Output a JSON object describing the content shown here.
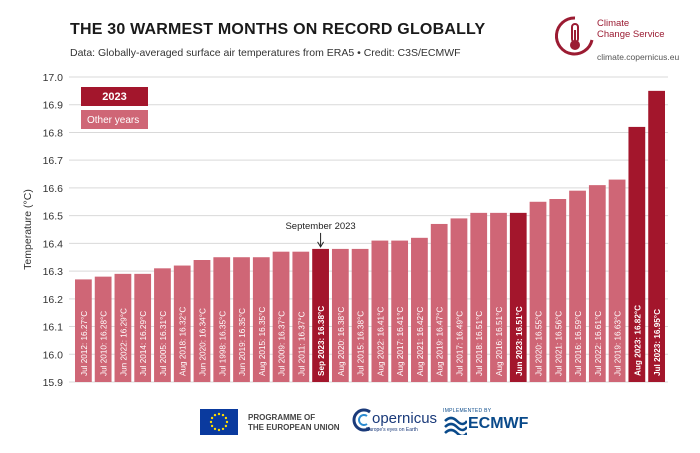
{
  "header": {
    "title": "THE 30 WARMEST MONTHS ON RECORD GLOBALLY",
    "subtitle": "Data: Globally-averaged surface air temperatures from ERA5 • Credit: C3S/ECMWF"
  },
  "brand": {
    "name_line1": "Climate",
    "name_line2": "Change Service",
    "url": "climate.copernicus.eu",
    "color": "#9b1b32"
  },
  "footer": {
    "eu_line1": "PROGRAMME OF",
    "eu_line2": "THE EUROPEAN UNION",
    "copernicus": "opernicus",
    "copernicus_tag": "Europe's eyes on Earth",
    "ecmwf_small": "IMPLEMENTED BY",
    "ecmwf": "ECMWF"
  },
  "colors": {
    "highlight": "#a3162c",
    "other": "#cf6676",
    "grid": "#d9d9d9"
  },
  "chart_data": {
    "type": "bar",
    "title": "THE 30 WARMEST MONTHS ON RECORD GLOBALLY",
    "ylabel": "Temperature (°C)",
    "ylim": [
      15.9,
      17.0
    ],
    "yticks": [
      "15.9",
      "16.0",
      "16.1",
      "16.2",
      "16.3",
      "16.4",
      "16.5",
      "16.6",
      "16.7",
      "16.8",
      "16.9",
      "17.0"
    ],
    "grid": true,
    "legend": {
      "position": "top-left",
      "items": [
        "2023",
        "Other years"
      ]
    },
    "annotation": {
      "text": "September 2023",
      "target": "Sep 2023"
    },
    "categories": [
      "Jul 2012",
      "Jul 2010",
      "Jun 2022",
      "Jul 2014",
      "Jul 2005",
      "Aug 2018",
      "Jun 2020",
      "Jul 1998",
      "Jun 2019",
      "Aug 2015",
      "Jul 2009",
      "Jul 2011",
      "Sep 2023",
      "Aug 2020",
      "Jul 2015",
      "Aug 2022",
      "Aug 2017",
      "Aug 2021",
      "Aug 2019",
      "Jul 2017",
      "Jul 2018",
      "Aug 2016",
      "Jun 2023",
      "Jul 2020",
      "Jul 2021",
      "Jul 2016",
      "Jul 2022",
      "Jul 2019",
      "Aug 2023",
      "Jul 2023"
    ],
    "values": [
      16.27,
      16.28,
      16.29,
      16.29,
      16.31,
      16.32,
      16.34,
      16.35,
      16.35,
      16.35,
      16.37,
      16.37,
      16.38,
      16.38,
      16.38,
      16.41,
      16.41,
      16.42,
      16.47,
      16.49,
      16.51,
      16.51,
      16.51,
      16.55,
      16.56,
      16.59,
      16.61,
      16.63,
      16.82,
      16.95
    ],
    "labels": [
      "Jul 2012: 16.27°C",
      "Jul 2010: 16.28°C",
      "Jun 2022: 16.29°C",
      "Jul 2014: 16.29°C",
      "Jul 2005: 16.31°C",
      "Aug 2018: 16.32°C",
      "Jun 2020: 16.34°C",
      "Jul 1998: 16.35°C",
      "Jun 2019: 16.35°C",
      "Aug 2015: 16.35°C",
      "Jul 2009: 16.37°C",
      "Jul 2011: 16.37°C",
      "Sep 2023: 16.38°C",
      "Aug 2020: 16.38°C",
      "Jul 2015: 16.38°C",
      "Aug 2022: 16.41°C",
      "Aug 2017: 16.41°C",
      "Aug 2021: 16.42°C",
      "Aug 2019: 16.47°C",
      "Jul 2017: 16.49°C",
      "Jul 2018: 16.51°C",
      "Aug 2016: 16.51°C",
      "Jun 2023: 16.51°C",
      "Jul 2020: 16.55°C",
      "Jul 2021: 16.56°C",
      "Jul 2016: 16.59°C",
      "Jul 2022: 16.61°C",
      "Jul 2019: 16.63°C",
      "Aug 2023: 16.82°C",
      "Jul 2023: 16.95°C"
    ],
    "highlight_2023": [
      false,
      false,
      false,
      false,
      false,
      false,
      false,
      false,
      false,
      false,
      false,
      false,
      true,
      false,
      false,
      false,
      false,
      false,
      false,
      false,
      false,
      false,
      true,
      false,
      false,
      false,
      false,
      false,
      true,
      true
    ]
  }
}
